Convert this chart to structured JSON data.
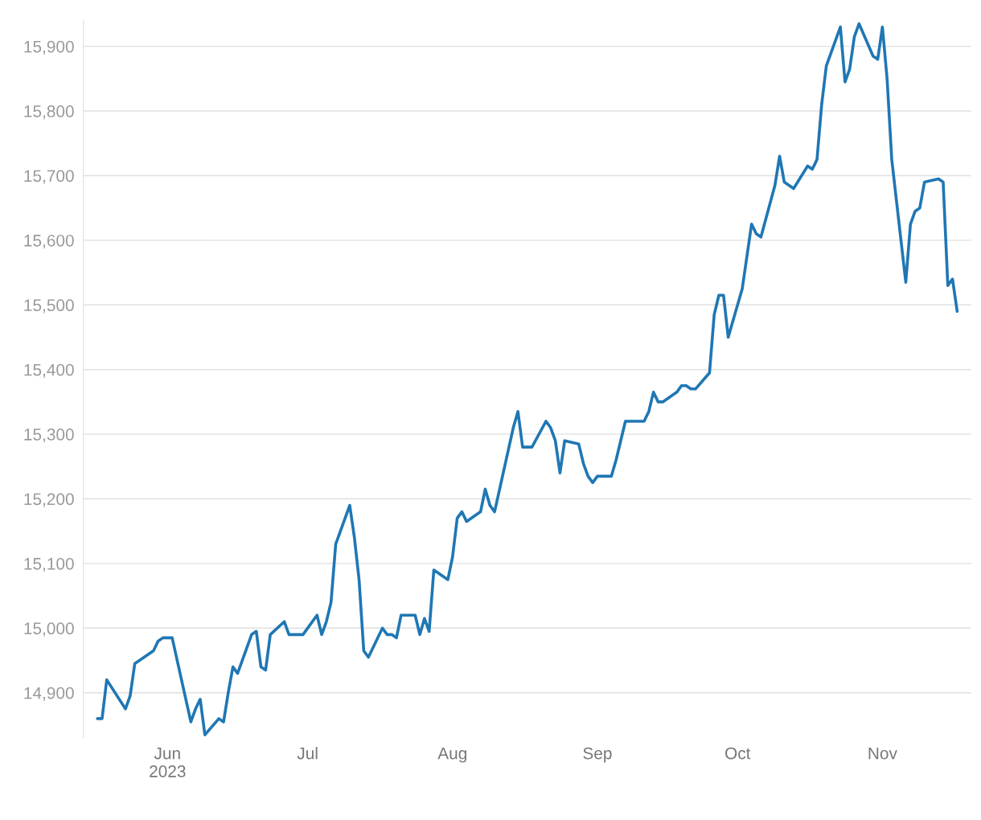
{
  "chart_data": {
    "type": "line",
    "grid": "y",
    "marker": "none",
    "line_style": "solid",
    "xlim": [
      "2023-05-14",
      "2023-11-20"
    ],
    "xticks": [
      {
        "value": "2023-06-01",
        "label": "Jun\n2023"
      },
      {
        "value": "2023-07-01",
        "label": "Jul"
      },
      {
        "value": "2023-08-01",
        "label": "Aug"
      },
      {
        "value": "2023-09-01",
        "label": "Sep"
      },
      {
        "value": "2023-10-01",
        "label": "Oct"
      },
      {
        "value": "2023-11-01",
        "label": "Nov"
      }
    ],
    "ylim": [
      14830,
      15940
    ],
    "yticks": [
      {
        "value": 14900,
        "label": "14,900"
      },
      {
        "value": 15000,
        "label": "15,000"
      },
      {
        "value": 15100,
        "label": "15,100"
      },
      {
        "value": 15200,
        "label": "15,200"
      },
      {
        "value": 15300,
        "label": "15,300"
      },
      {
        "value": 15400,
        "label": "15,400"
      },
      {
        "value": 15500,
        "label": "15,500"
      },
      {
        "value": 15600,
        "label": "15,600"
      },
      {
        "value": 15700,
        "label": "15,700"
      },
      {
        "value": 15800,
        "label": "15,800"
      },
      {
        "value": 15900,
        "label": "15,900"
      }
    ],
    "x": [
      "2023-05-17",
      "2023-05-18",
      "2023-05-19",
      "2023-05-23",
      "2023-05-24",
      "2023-05-25",
      "2023-05-29",
      "2023-05-30",
      "2023-05-31",
      "2023-06-02",
      "2023-06-06",
      "2023-06-07",
      "2023-06-08",
      "2023-06-09",
      "2023-06-12",
      "2023-06-13",
      "2023-06-14",
      "2023-06-15",
      "2023-06-16",
      "2023-06-19",
      "2023-06-20",
      "2023-06-21",
      "2023-06-22",
      "2023-06-23",
      "2023-06-26",
      "2023-06-27",
      "2023-06-30",
      "2023-07-03",
      "2023-07-04",
      "2023-07-05",
      "2023-07-06",
      "2023-07-07",
      "2023-07-10",
      "2023-07-11",
      "2023-07-12",
      "2023-07-13",
      "2023-07-14",
      "2023-07-17",
      "2023-07-18",
      "2023-07-19",
      "2023-07-20",
      "2023-07-21",
      "2023-07-24",
      "2023-07-25",
      "2023-07-26",
      "2023-07-27",
      "2023-07-28",
      "2023-07-31",
      "2023-08-01",
      "2023-08-02",
      "2023-08-03",
      "2023-08-04",
      "2023-08-07",
      "2023-08-08",
      "2023-08-09",
      "2023-08-10",
      "2023-08-14",
      "2023-08-15",
      "2023-08-16",
      "2023-08-18",
      "2023-08-21",
      "2023-08-22",
      "2023-08-23",
      "2023-08-24",
      "2023-08-25",
      "2023-08-28",
      "2023-08-29",
      "2023-08-30",
      "2023-08-31",
      "2023-09-01",
      "2023-09-04",
      "2023-09-05",
      "2023-09-07",
      "2023-09-11",
      "2023-09-12",
      "2023-09-13",
      "2023-09-14",
      "2023-09-15",
      "2023-09-18",
      "2023-09-19",
      "2023-09-20",
      "2023-09-21",
      "2023-09-22",
      "2023-09-25",
      "2023-09-26",
      "2023-09-27",
      "2023-09-28",
      "2023-09-29",
      "2023-10-02",
      "2023-10-04",
      "2023-10-05",
      "2023-10-06",
      "2023-10-09",
      "2023-10-10",
      "2023-10-11",
      "2023-10-13",
      "2023-10-16",
      "2023-10-17",
      "2023-10-18",
      "2023-10-19",
      "2023-10-20",
      "2023-10-23",
      "2023-10-24",
      "2023-10-25",
      "2023-10-26",
      "2023-10-27",
      "2023-10-30",
      "2023-10-31",
      "2023-11-01",
      "2023-11-02",
      "2023-11-03",
      "2023-11-06",
      "2023-11-07",
      "2023-11-08",
      "2023-11-09",
      "2023-11-10",
      "2023-11-13",
      "2023-11-14",
      "2023-11-15",
      "2023-11-16",
      "2023-11-17"
    ],
    "series": [
      {
        "color": "#1f77b4",
        "values": [
          14860,
          14860,
          14920,
          14875,
          14895,
          14945,
          14965,
          14980,
          14985,
          14985,
          14855,
          14875,
          14890,
          14835,
          14860,
          14855,
          14900,
          14940,
          14930,
          14990,
          14995,
          14940,
          14935,
          14990,
          15010,
          14990,
          14990,
          15020,
          14990,
          15010,
          15040,
          15130,
          15190,
          15140,
          15075,
          14965,
          14955,
          15000,
          14990,
          14990,
          14985,
          15020,
          15020,
          14990,
          15015,
          14995,
          15090,
          15075,
          15110,
          15170,
          15180,
          15165,
          15180,
          15215,
          15190,
          15180,
          15310,
          15335,
          15280,
          15280,
          15320,
          15310,
          15290,
          15240,
          15290,
          15285,
          15255,
          15235,
          15225,
          15235,
          15235,
          15260,
          15320,
          15320,
          15335,
          15365,
          15350,
          15350,
          15365,
          15375,
          15375,
          15370,
          15370,
          15395,
          15485,
          15515,
          15515,
          15450,
          15525,
          15625,
          15610,
          15605,
          15685,
          15730,
          15690,
          15680,
          15715,
          15710,
          15725,
          15810,
          15870,
          15930,
          15845,
          15865,
          15915,
          15935,
          15885,
          15880,
          15930,
          15850,
          15725,
          15535,
          15625,
          15645,
          15650,
          15690,
          15695,
          15690,
          15530,
          15540,
          15490
        ]
      }
    ]
  }
}
